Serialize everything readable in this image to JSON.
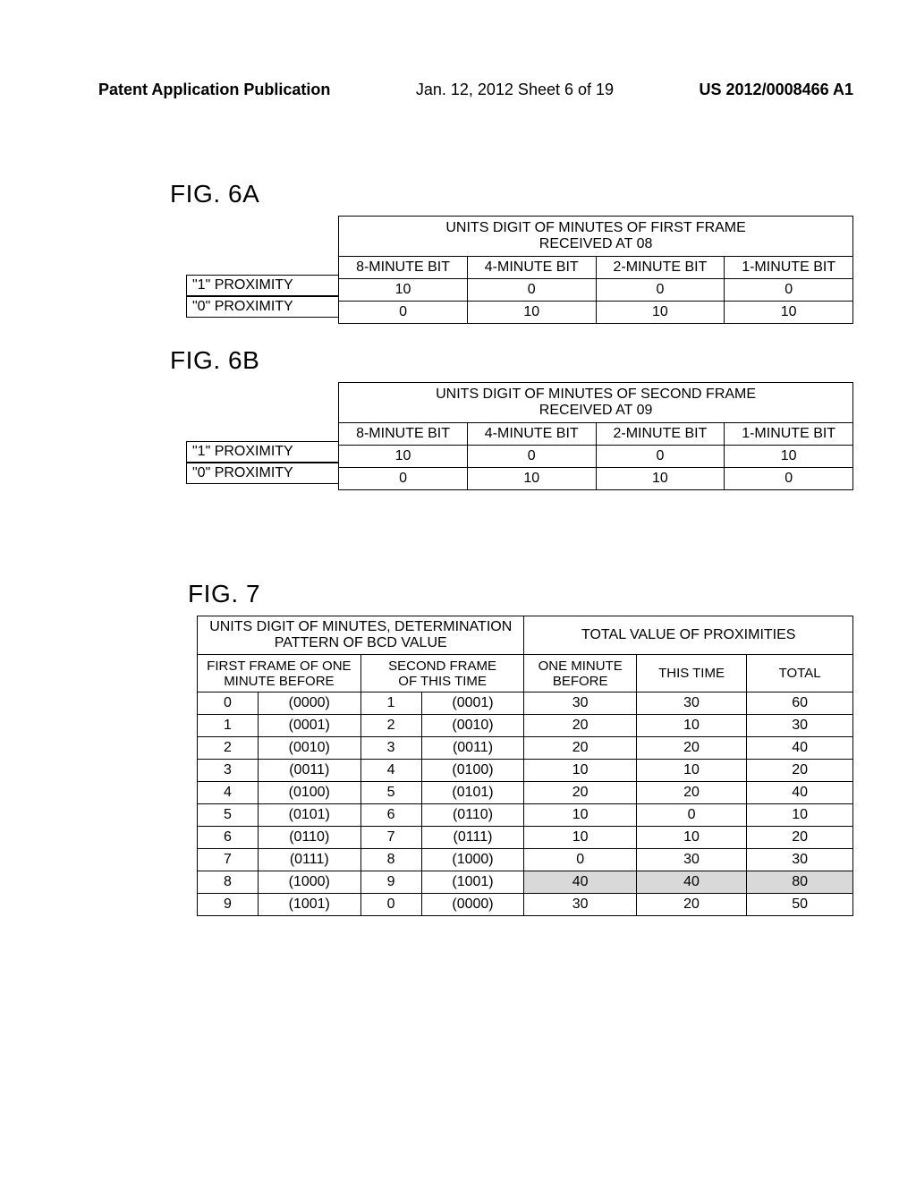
{
  "header": {
    "left": "Patent Application Publication",
    "center": "Jan. 12, 2012  Sheet 6 of 19",
    "right": "US 2012/0008466 A1"
  },
  "fig6a": {
    "label": "FIG. 6A",
    "title_l1": "UNITS DIGIT OF MINUTES OF FIRST FRAME",
    "title_l2": "RECEIVED AT 08",
    "bits": [
      "8-MINUTE BIT",
      "4-MINUTE BIT",
      "2-MINUTE BIT",
      "1-MINUTE BIT"
    ],
    "rows": [
      {
        "label": "\"1\" PROXIMITY",
        "v": [
          "10",
          "0",
          "0",
          "0"
        ]
      },
      {
        "label": "\"0\" PROXIMITY",
        "v": [
          "0",
          "10",
          "10",
          "10"
        ]
      }
    ]
  },
  "fig6b": {
    "label": "FIG. 6B",
    "title_l1": "UNITS DIGIT OF MINUTES OF SECOND FRAME",
    "title_l2": "RECEIVED AT 09",
    "bits": [
      "8-MINUTE BIT",
      "4-MINUTE BIT",
      "2-MINUTE BIT",
      "1-MINUTE BIT"
    ],
    "rows": [
      {
        "label": "\"1\" PROXIMITY",
        "v": [
          "10",
          "0",
          "0",
          "10"
        ]
      },
      {
        "label": "\"0\" PROXIMITY",
        "v": [
          "0",
          "10",
          "10",
          "0"
        ]
      }
    ]
  },
  "fig7": {
    "label": "FIG. 7",
    "group1_l1": "UNITS DIGIT OF MINUTES, DETERMINATION",
    "group1_l2": "PATTERN OF BCD VALUE",
    "group2": "TOTAL VALUE OF PROXIMITIES",
    "sub": {
      "c1_l1": "FIRST FRAME OF ONE",
      "c1_l2": "MINUTE BEFORE",
      "c2_l1": "SECOND FRAME",
      "c2_l2": "OF THIS TIME",
      "c3_l1": "ONE MINUTE",
      "c3_l2": "BEFORE",
      "c4": "THIS TIME",
      "c5": "TOTAL"
    },
    "rows": [
      {
        "d1": "0",
        "b1": "(0000)",
        "d2": "1",
        "b2": "(0001)",
        "p1": "30",
        "p2": "30",
        "t": "60",
        "hl": false
      },
      {
        "d1": "1",
        "b1": "(0001)",
        "d2": "2",
        "b2": "(0010)",
        "p1": "20",
        "p2": "10",
        "t": "30",
        "hl": false
      },
      {
        "d1": "2",
        "b1": "(0010)",
        "d2": "3",
        "b2": "(0011)",
        "p1": "20",
        "p2": "20",
        "t": "40",
        "hl": false
      },
      {
        "d1": "3",
        "b1": "(0011)",
        "d2": "4",
        "b2": "(0100)",
        "p1": "10",
        "p2": "10",
        "t": "20",
        "hl": false
      },
      {
        "d1": "4",
        "b1": "(0100)",
        "d2": "5",
        "b2": "(0101)",
        "p1": "20",
        "p2": "20",
        "t": "40",
        "hl": false
      },
      {
        "d1": "5",
        "b1": "(0101)",
        "d2": "6",
        "b2": "(0110)",
        "p1": "10",
        "p2": "0",
        "t": "10",
        "hl": false
      },
      {
        "d1": "6",
        "b1": "(0110)",
        "d2": "7",
        "b2": "(0111)",
        "p1": "10",
        "p2": "10",
        "t": "20",
        "hl": false
      },
      {
        "d1": "7",
        "b1": "(0111)",
        "d2": "8",
        "b2": "(1000)",
        "p1": "0",
        "p2": "30",
        "t": "30",
        "hl": false
      },
      {
        "d1": "8",
        "b1": "(1000)",
        "d2": "9",
        "b2": "(1001)",
        "p1": "40",
        "p2": "40",
        "t": "80",
        "hl": true
      },
      {
        "d1": "9",
        "b1": "(1001)",
        "d2": "0",
        "b2": "(0000)",
        "p1": "30",
        "p2": "20",
        "t": "50",
        "hl": false
      }
    ]
  }
}
